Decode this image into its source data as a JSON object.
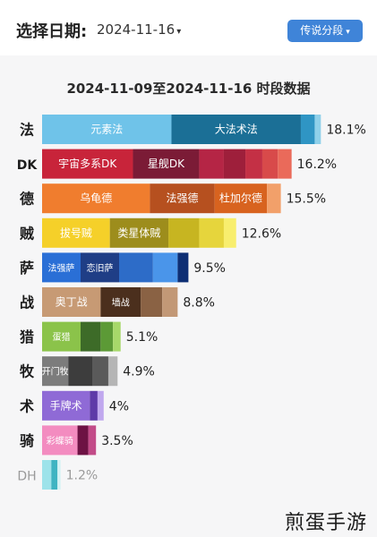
{
  "header": {
    "date_label": "选择日期:",
    "date_value": "2024-11-16",
    "segment_button": "传说分段"
  },
  "watermark": "煎蛋手游",
  "chart_data": {
    "type": "bar",
    "orientation": "horizontal",
    "stacked": true,
    "title": "2024-11-09至2024-11-16 时段数据",
    "xlabel": "",
    "ylabel": "",
    "grid": false,
    "legend": "none",
    "categories": [
      "法",
      "DK",
      "德",
      "贼",
      "萨",
      "战",
      "猎",
      "牧",
      "术",
      "骑",
      "DH"
    ],
    "totals": [
      18.1,
      16.2,
      15.5,
      12.6,
      9.5,
      8.8,
      5.1,
      4.9,
      4,
      3.5,
      1.2
    ],
    "total_labels": [
      "18.1%",
      "16.2%",
      "15.5%",
      "12.6%",
      "9.5%",
      "8.8%",
      "5.1%",
      "4.9%",
      "4%",
      "3.5%",
      "1.2%"
    ],
    "rows": [
      {
        "segments": [
          {
            "label": "元素法",
            "value": 8.4,
            "color": "#6fc3e9"
          },
          {
            "label": "大法术法",
            "value": 8.4,
            "color": "#1b6f96"
          },
          {
            "label": "",
            "value": 0.9,
            "color": "#2f95c4"
          },
          {
            "label": "",
            "value": 0.4,
            "color": "#8fd0ea"
          }
        ]
      },
      {
        "segments": [
          {
            "label": "宇宙多系DK",
            "value": 5.9,
            "color": "#c8243a"
          },
          {
            "label": "星舰DK",
            "value": 4.3,
            "color": "#7b1b36"
          },
          {
            "label": "",
            "value": 1.6,
            "color": "#b52545"
          },
          {
            "label": "",
            "value": 1.4,
            "color": "#9e1f3b"
          },
          {
            "label": "",
            "value": 1.1,
            "color": "#c43045"
          },
          {
            "label": "",
            "value": 1.0,
            "color": "#d84a4a"
          },
          {
            "label": "",
            "value": 0.9,
            "color": "#ea6a5a"
          }
        ]
      },
      {
        "segments": [
          {
            "label": "乌龟德",
            "value": 7.0,
            "color": "#f07d2e"
          },
          {
            "label": "法强德",
            "value": 4.2,
            "color": "#b6501f"
          },
          {
            "label": "杜加尔德",
            "value": 3.4,
            "color": "#d8631f"
          },
          {
            "label": "",
            "value": 0.9,
            "color": "#f2a06a"
          }
        ]
      },
      {
        "segments": [
          {
            "label": "拔号贼",
            "value": 4.4,
            "color": "#f5d029"
          },
          {
            "label": "类星体贼",
            "value": 3.8,
            "color": "#9d8d1c"
          },
          {
            "label": "",
            "value": 2.0,
            "color": "#c7b521"
          },
          {
            "label": "",
            "value": 1.6,
            "color": "#e6d53c"
          },
          {
            "label": "",
            "value": 0.8,
            "color": "#f8ee6e"
          }
        ]
      },
      {
        "segments": [
          {
            "label": "法强萨",
            "value": 2.5,
            "color": "#2a6fd6"
          },
          {
            "label": "恋旧萨",
            "value": 2.5,
            "color": "#1f3e86"
          },
          {
            "label": "",
            "value": 2.2,
            "color": "#2d6cc8"
          },
          {
            "label": "",
            "value": 1.6,
            "color": "#4a95ea"
          },
          {
            "label": "",
            "value": 0.7,
            "color": "#0e2f74"
          }
        ]
      },
      {
        "segments": [
          {
            "label": "奥丁战",
            "value": 3.8,
            "color": "#c79a74"
          },
          {
            "label": "墙战",
            "value": 2.6,
            "color": "#4b2f1d"
          },
          {
            "label": "",
            "value": 1.4,
            "color": "#8a6244"
          },
          {
            "label": "",
            "value": 1.0,
            "color": "#c29876"
          }
        ]
      },
      {
        "segments": [
          {
            "label": "蛋猎",
            "value": 2.5,
            "color": "#8bc34a"
          },
          {
            "label": "",
            "value": 1.3,
            "color": "#3d6b28"
          },
          {
            "label": "",
            "value": 0.8,
            "color": "#5c9a36"
          },
          {
            "label": "",
            "value": 0.5,
            "color": "#a7d86a"
          }
        ]
      },
      {
        "segments": [
          {
            "label": "开门牧",
            "value": 1.7,
            "color": "#7c7c7c"
          },
          {
            "label": "",
            "value": 1.6,
            "color": "#3d3d3d"
          },
          {
            "label": "",
            "value": 1.0,
            "color": "#5a5a5a"
          },
          {
            "label": "",
            "value": 0.6,
            "color": "#b5b5b5"
          }
        ]
      },
      {
        "segments": [
          {
            "label": "手牌术",
            "value": 3.1,
            "color": "#8f6ad6"
          },
          {
            "label": "",
            "value": 0.5,
            "color": "#5e3aa8"
          },
          {
            "label": "",
            "value": 0.4,
            "color": "#c0a8ee"
          }
        ]
      },
      {
        "segments": [
          {
            "label": "彩蝶骑",
            "value": 2.3,
            "color": "#f38cc0"
          },
          {
            "label": "",
            "value": 0.7,
            "color": "#6d1244"
          },
          {
            "label": "",
            "value": 0.5,
            "color": "#c24b88"
          }
        ]
      },
      {
        "segments": [
          {
            "label": "",
            "value": 0.6,
            "color": "#9de3ea"
          },
          {
            "label": "",
            "value": 0.4,
            "color": "#3fb4c2"
          },
          {
            "label": "",
            "value": 0.2,
            "color": "#d5f2f4"
          }
        ]
      }
    ]
  }
}
